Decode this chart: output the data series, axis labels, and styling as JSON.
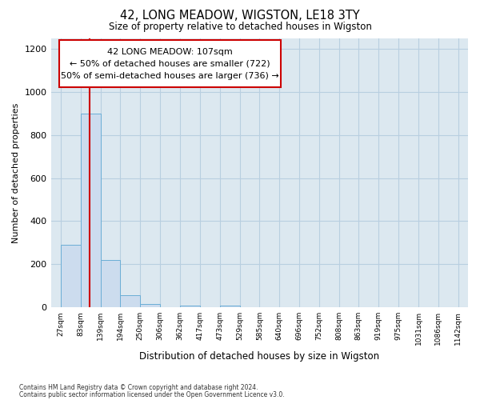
{
  "title": "42, LONG MEADOW, WIGSTON, LE18 3TY",
  "subtitle": "Size of property relative to detached houses in Wigston",
  "xlabel": "Distribution of detached houses by size in Wigston",
  "ylabel": "Number of detached properties",
  "bar_edges": [
    27,
    83,
    139,
    194,
    250,
    306,
    362,
    417,
    473,
    529,
    585,
    640,
    696,
    752,
    808,
    863,
    919,
    975,
    1031,
    1086,
    1142
  ],
  "bar_heights": [
    290,
    900,
    220,
    55,
    15,
    0,
    8,
    0,
    8,
    0,
    0,
    0,
    0,
    0,
    0,
    0,
    0,
    0,
    0,
    0,
    0
  ],
  "bar_color": "#ccdcee",
  "bar_edge_color": "#6baed6",
  "grid_color": "#b8cfe0",
  "background_color": "#dce8f0",
  "annotation_text": "42 LONG MEADOW: 107sqm\n← 50% of detached houses are smaller (722)\n50% of semi-detached houses are larger (736) →",
  "vline_x": 107,
  "vline_color": "#cc0000",
  "annotation_box_facecolor": "#ffffff",
  "annotation_box_edgecolor": "#cc0000",
  "ylim": [
    0,
    1250
  ],
  "yticks": [
    0,
    200,
    400,
    600,
    800,
    1000,
    1200
  ],
  "footer_line1": "Contains HM Land Registry data © Crown copyright and database right 2024.",
  "footer_line2": "Contains public sector information licensed under the Open Government Licence v3.0."
}
